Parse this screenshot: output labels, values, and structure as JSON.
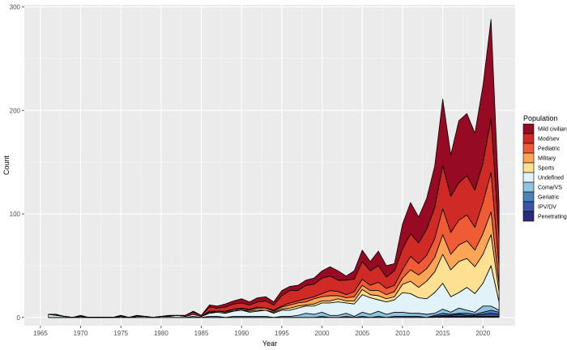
{
  "chart_data": {
    "type": "area",
    "stacked": true,
    "xlabel": "Year",
    "ylabel": "Count",
    "xlim": [
      1963,
      2024
    ],
    "ylim": [
      -8,
      302
    ],
    "xticks": [
      1965,
      1970,
      1975,
      1980,
      1985,
      1990,
      1995,
      2000,
      2005,
      2010,
      2015,
      2020
    ],
    "yticks": [
      0,
      100,
      200,
      300
    ],
    "grid": true,
    "legend": {
      "title": "Population",
      "position": "right"
    },
    "x": [
      1966,
      1967,
      1968,
      1969,
      1970,
      1971,
      1972,
      1973,
      1974,
      1975,
      1976,
      1977,
      1978,
      1979,
      1980,
      1981,
      1982,
      1983,
      1984,
      1985,
      1986,
      1987,
      1988,
      1989,
      1990,
      1991,
      1992,
      1993,
      1994,
      1995,
      1996,
      1997,
      1998,
      1999,
      2000,
      2001,
      2002,
      2003,
      2004,
      2005,
      2006,
      2007,
      2008,
      2009,
      2010,
      2011,
      2012,
      2013,
      2014,
      2015,
      2016,
      2017,
      2018,
      2019,
      2020,
      2021,
      2022
    ],
    "series": [
      {
        "name": "Penetrating",
        "color": "#2c2a7a",
        "values": [
          0,
          0,
          0,
          0,
          0,
          0,
          0,
          0,
          0,
          0,
          0,
          0,
          0,
          0,
          0,
          0,
          0,
          0,
          0,
          0,
          0,
          0,
          0,
          0,
          0,
          0,
          0,
          0,
          0,
          0,
          0,
          0,
          0,
          0,
          0,
          0,
          0,
          0,
          0,
          0,
          0,
          0,
          0,
          0,
          0,
          0,
          0,
          0,
          0,
          1,
          1,
          1,
          1,
          1,
          1,
          1,
          1
        ]
      },
      {
        "name": "IPV/DV",
        "color": "#3a55a5",
        "values": [
          0,
          0,
          0,
          0,
          0,
          0,
          0,
          0,
          0,
          0,
          0,
          0,
          0,
          0,
          0,
          0,
          0,
          0,
          0,
          0,
          0,
          0,
          0,
          0,
          0,
          0,
          0,
          0,
          0,
          0,
          0,
          0,
          0,
          0,
          0,
          0,
          0,
          0,
          0,
          0,
          0,
          0,
          0,
          0,
          0,
          0,
          0,
          0,
          1,
          1,
          1,
          2,
          1,
          1,
          2,
          3,
          2
        ]
      },
      {
        "name": "Geriatric",
        "color": "#4a84b8",
        "values": [
          0,
          0,
          0,
          0,
          0,
          0,
          0,
          0,
          0,
          0,
          0,
          0,
          0,
          0,
          0,
          0,
          0,
          0,
          0,
          0,
          0,
          0,
          0,
          0,
          0,
          0,
          0,
          0,
          0,
          0,
          0,
          0,
          0,
          0,
          1,
          0,
          0,
          1,
          0,
          1,
          0,
          1,
          0,
          1,
          1,
          1,
          1,
          0,
          1,
          2,
          1,
          1,
          2,
          1,
          2,
          3,
          2
        ]
      },
      {
        "name": "Coma/VS",
        "color": "#8ec4df",
        "values": [
          0,
          0,
          0,
          0,
          0,
          0,
          0,
          0,
          0,
          0,
          0,
          0,
          0,
          0,
          0,
          0,
          0,
          0,
          1,
          0,
          1,
          1,
          0,
          1,
          1,
          1,
          1,
          1,
          0,
          1,
          1,
          2,
          4,
          3,
          4,
          2,
          2,
          3,
          1,
          4,
          3,
          5,
          3,
          4,
          4,
          3,
          3,
          3,
          2,
          4,
          2,
          5,
          3,
          2,
          6,
          4,
          2
        ]
      },
      {
        "name": "Undefined",
        "color": "#e1f3f8",
        "values": [
          3,
          2,
          1,
          0,
          1,
          0,
          0,
          0,
          0,
          1,
          0,
          1,
          1,
          0,
          1,
          1,
          2,
          1,
          2,
          1,
          3,
          4,
          4,
          5,
          6,
          4,
          5,
          6,
          4,
          6,
          6,
          7,
          7,
          8,
          9,
          12,
          13,
          10,
          12,
          17,
          16,
          11,
          12,
          12,
          19,
          19,
          15,
          15,
          20,
          25,
          15,
          15,
          22,
          18,
          22,
          39,
          8
        ]
      },
      {
        "name": "Sports",
        "color": "#fde092",
        "values": [
          0,
          0,
          0,
          0,
          0,
          0,
          0,
          0,
          0,
          0,
          0,
          0,
          0,
          0,
          0,
          0,
          0,
          0,
          0,
          0,
          1,
          0,
          0,
          1,
          0,
          1,
          1,
          0,
          1,
          1,
          2,
          2,
          1,
          2,
          2,
          2,
          3,
          2,
          3,
          5,
          3,
          4,
          3,
          3,
          8,
          12,
          10,
          17,
          20,
          28,
          26,
          30,
          28,
          26,
          28,
          30,
          10
        ]
      },
      {
        "name": "Military",
        "color": "#fca557",
        "values": [
          0,
          0,
          0,
          0,
          0,
          0,
          0,
          0,
          0,
          0,
          0,
          0,
          0,
          0,
          0,
          0,
          0,
          0,
          0,
          0,
          0,
          1,
          1,
          1,
          1,
          1,
          2,
          2,
          1,
          2,
          3,
          3,
          3,
          5,
          4,
          5,
          3,
          3,
          4,
          4,
          4,
          5,
          4,
          5,
          6,
          11,
          12,
          12,
          14,
          19,
          15,
          16,
          17,
          16,
          20,
          22,
          8
        ]
      },
      {
        "name": "Pediatric",
        "color": "#ef5b35",
        "values": [
          0,
          0,
          0,
          0,
          0,
          0,
          0,
          0,
          0,
          0,
          0,
          0,
          0,
          0,
          0,
          0,
          0,
          0,
          0,
          0,
          1,
          0,
          1,
          0,
          1,
          1,
          1,
          0,
          1,
          1,
          2,
          2,
          3,
          2,
          3,
          5,
          4,
          3,
          5,
          6,
          5,
          8,
          6,
          6,
          8,
          13,
          11,
          13,
          18,
          25,
          21,
          24,
          25,
          22,
          30,
          38,
          17
        ]
      },
      {
        "name": "Mod/sev",
        "color": "#d02a27",
        "values": [
          0,
          0,
          0,
          0,
          0,
          0,
          0,
          0,
          0,
          1,
          0,
          1,
          0,
          0,
          0,
          1,
          0,
          1,
          2,
          1,
          4,
          3,
          4,
          5,
          5,
          4,
          5,
          7,
          5,
          10,
          12,
          10,
          13,
          12,
          15,
          14,
          11,
          14,
          12,
          17,
          14,
          16,
          11,
          14,
          20,
          22,
          20,
          25,
          30,
          42,
          35,
          36,
          38,
          36,
          38,
          52,
          28
        ]
      },
      {
        "name": "Mild civilian",
        "color": "#970a24",
        "values": [
          0,
          1,
          0,
          0,
          1,
          0,
          0,
          0,
          0,
          0,
          0,
          0,
          0,
          0,
          0,
          0,
          0,
          0,
          1,
          0,
          2,
          2,
          3,
          3,
          4,
          3,
          4,
          4,
          3,
          5,
          4,
          5,
          5,
          6,
          7,
          9,
          9,
          4,
          8,
          11,
          9,
          14,
          11,
          7,
          24,
          30,
          25,
          30,
          40,
          64,
          40,
          60,
          60,
          55,
          75,
          96,
          32
        ]
      }
    ]
  }
}
